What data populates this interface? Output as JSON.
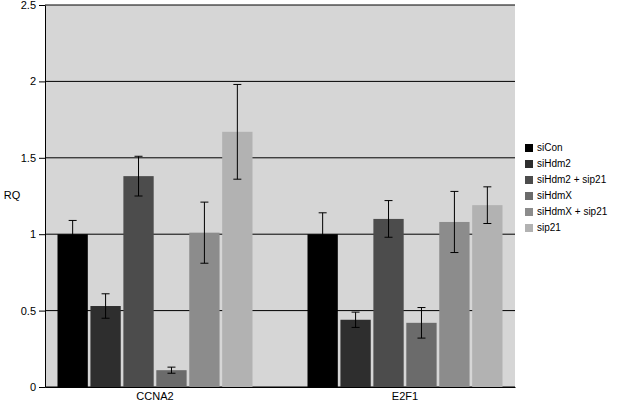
{
  "chart_data": {
    "type": "bar",
    "y_label": "RQ",
    "categories": [
      "CCNA2",
      "E2F1"
    ],
    "series": [
      {
        "name": "siCon",
        "color": "#000000",
        "values": [
          1.0,
          1.0
        ],
        "errors": [
          0.09,
          0.14
        ]
      },
      {
        "name": "siHdm2",
        "color": "#2e2e2e",
        "values": [
          0.53,
          0.44
        ],
        "errors": [
          0.08,
          0.05
        ]
      },
      {
        "name": "siHdm2 + sip21",
        "color": "#4c4c4c",
        "values": [
          1.38,
          1.1
        ],
        "errors": [
          0.13,
          0.12
        ]
      },
      {
        "name": "siHdmX",
        "color": "#6b6b6b",
        "values": [
          0.11,
          0.42
        ],
        "errors": [
          0.02,
          0.1
        ]
      },
      {
        "name": "siHdmX + sip21",
        "color": "#8c8c8c",
        "values": [
          1.01,
          1.08
        ],
        "errors": [
          0.2,
          0.2
        ]
      },
      {
        "name": "sip21",
        "color": "#b2b2b2",
        "values": [
          1.67,
          1.19
        ],
        "errors": [
          0.31,
          0.12
        ]
      }
    ],
    "ylim": [
      0,
      2.5
    ],
    "yticks": [
      0,
      0.5,
      1,
      1.5,
      2,
      2.5
    ],
    "grid": true,
    "legend": "right"
  }
}
